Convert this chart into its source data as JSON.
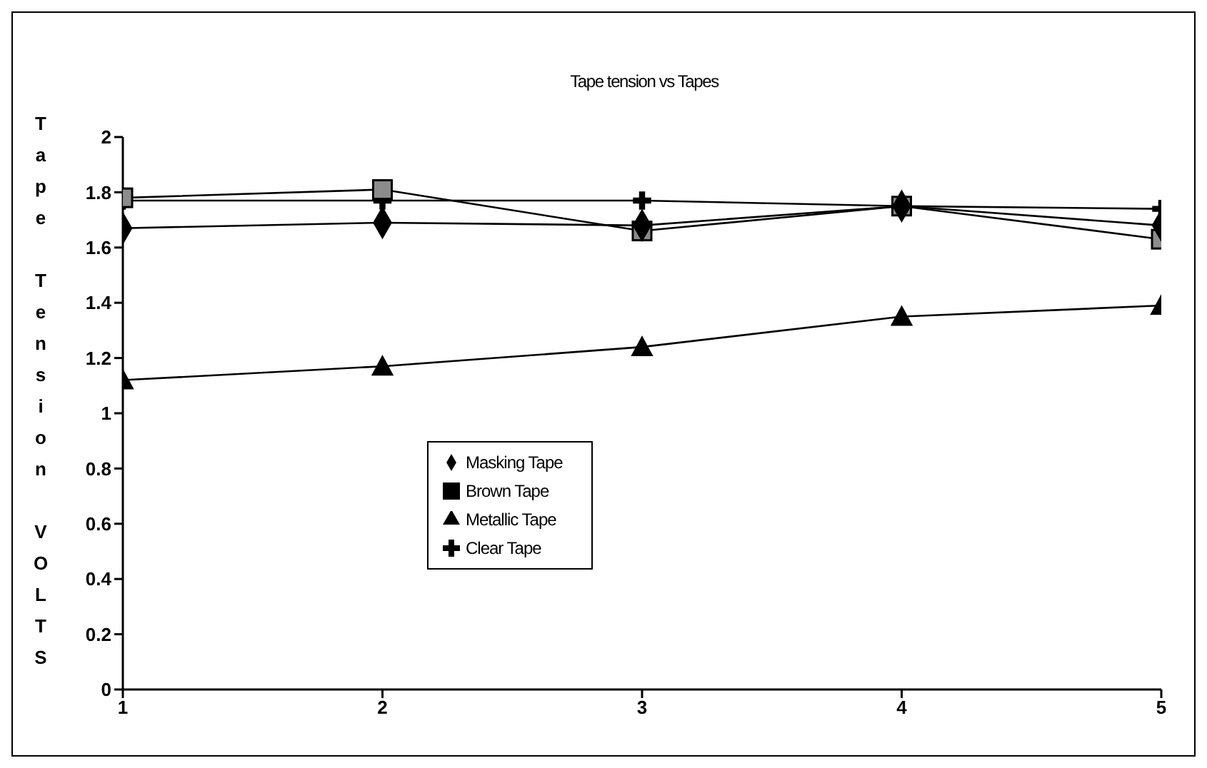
{
  "chart_data": {
    "type": "line",
    "title": "Tape tension vs  Tapes",
    "ylabel": "Tape Tension VOLTS",
    "x": [
      1,
      2,
      3,
      4,
      5
    ],
    "xlim": [
      1,
      5
    ],
    "xticks": [
      1,
      2,
      3,
      4,
      5
    ],
    "ylim": [
      0,
      2
    ],
    "yticks": [
      0,
      0.2,
      0.4,
      0.6,
      0.8,
      1,
      1.2,
      1.4,
      1.6,
      1.8,
      2
    ],
    "grid": false,
    "legend": "bottom",
    "line_style": "solid",
    "series": [
      {
        "name": "Masking Tape",
        "color": "#000000",
        "marker": "diamond",
        "values": [
          1.67,
          1.69,
          1.68,
          1.75,
          1.68
        ]
      },
      {
        "name": "Brown Tape",
        "color": "#000000",
        "marker": "square",
        "values": [
          1.78,
          1.81,
          1.66,
          1.75,
          1.63
        ]
      },
      {
        "name": "Metallic Tape",
        "color": "#000000",
        "marker": "triangle",
        "values": [
          1.12,
          1.17,
          1.24,
          1.35,
          1.39
        ]
      },
      {
        "name": "Clear Tape",
        "color": "#000000",
        "marker": "cross",
        "values": [
          1.77,
          1.77,
          1.77,
          1.75,
          1.74
        ]
      }
    ]
  }
}
